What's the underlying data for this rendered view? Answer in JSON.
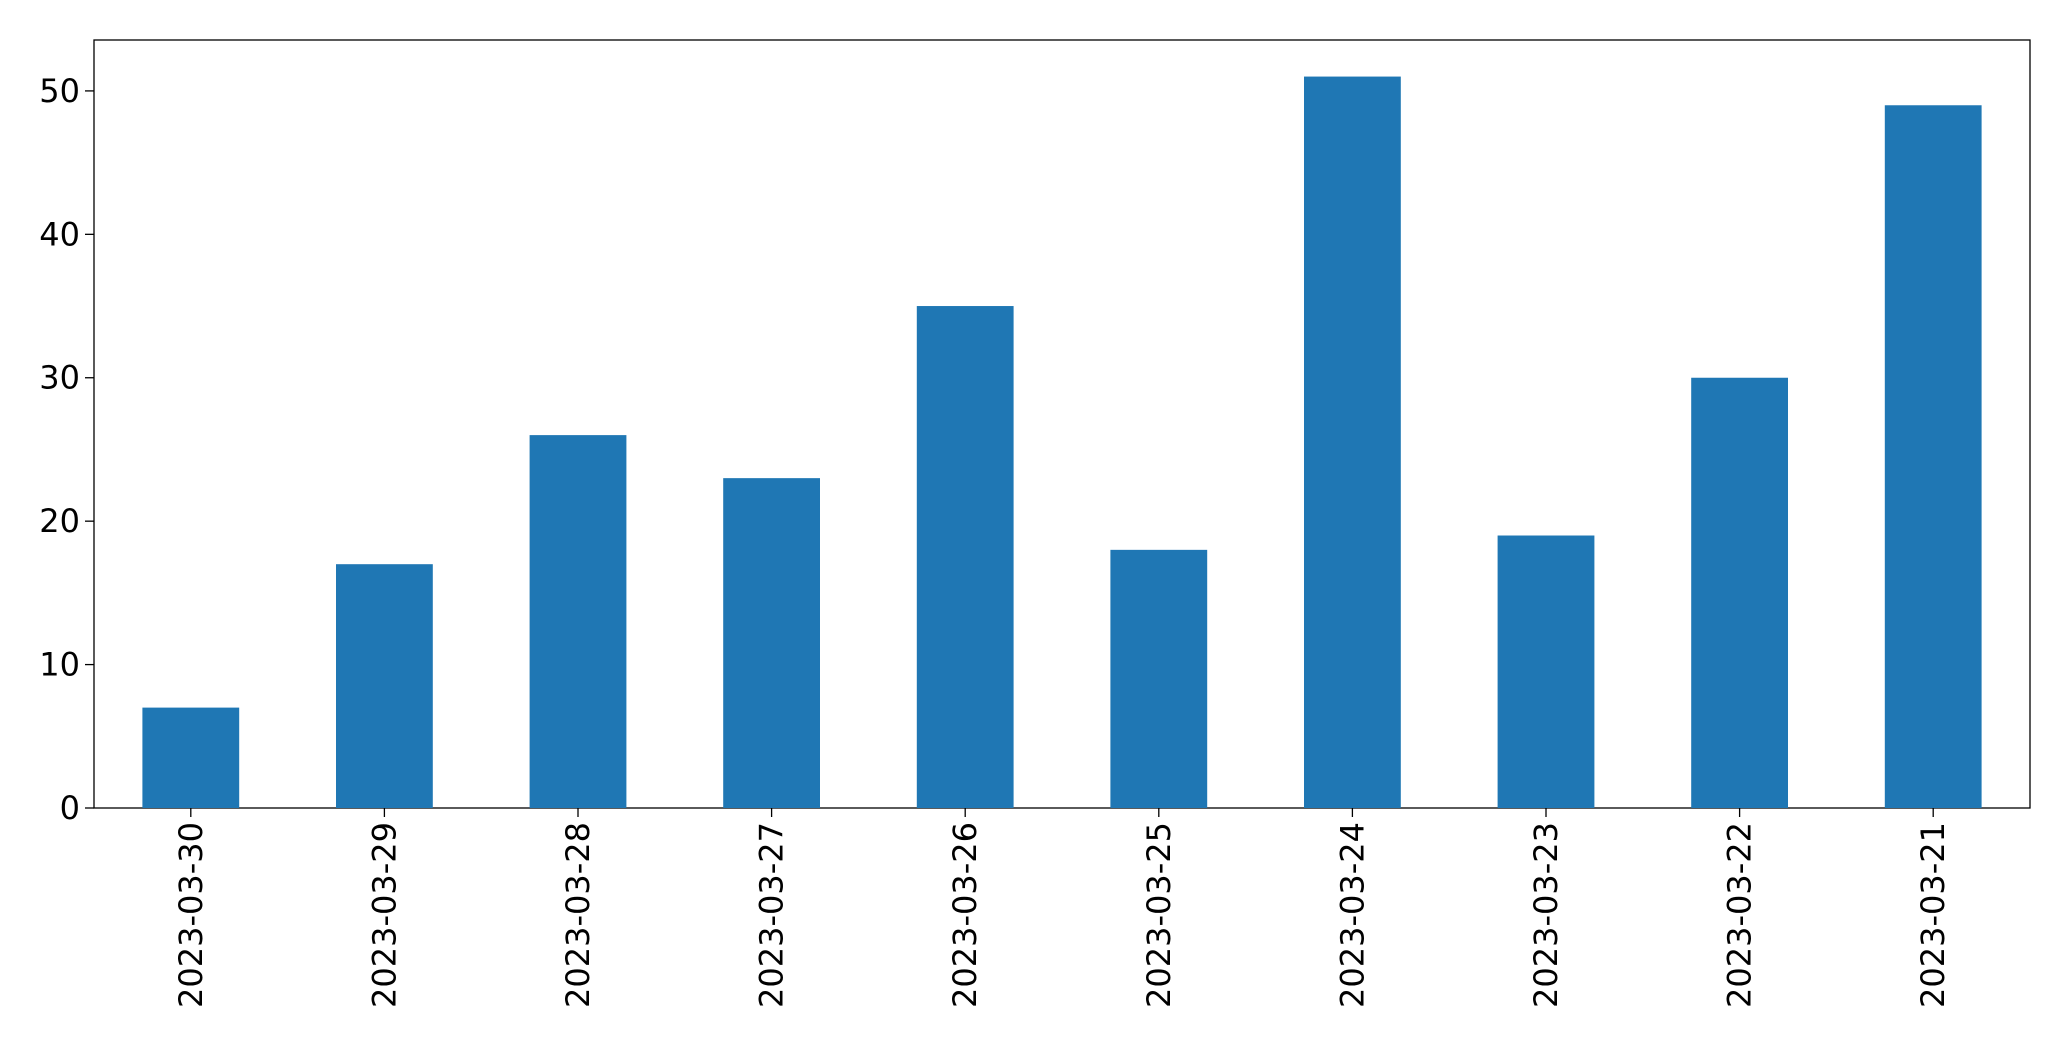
{
  "chart_data": {
    "type": "bar",
    "categories": [
      "2023-03-30",
      "2023-03-29",
      "2023-03-28",
      "2023-03-27",
      "2023-03-26",
      "2023-03-25",
      "2023-03-24",
      "2023-03-23",
      "2023-03-22",
      "2023-03-21"
    ],
    "values": [
      7,
      17,
      26,
      23,
      35,
      18,
      51,
      19,
      30,
      49
    ],
    "color": "#1f77b4",
    "ylim": [
      0,
      53.55
    ],
    "yticks": [
      0,
      10,
      20,
      30,
      40,
      50
    ],
    "grid": false
  }
}
